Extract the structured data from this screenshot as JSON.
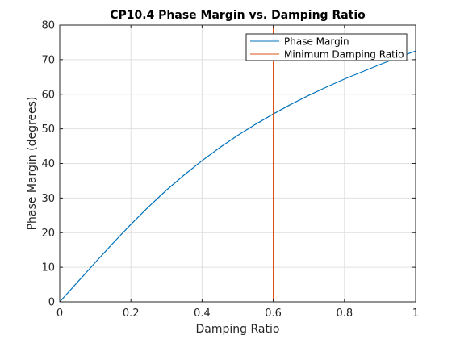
{
  "chart_data": {
    "type": "line",
    "title": "CP10.4 Phase Margin vs. Damping Ratio",
    "xlabel": "Damping Ratio",
    "ylabel": "Phase Margin (degrees)",
    "xlim": [
      0,
      1
    ],
    "ylim": [
      0,
      80
    ],
    "xticks": [
      0,
      0.2,
      0.4,
      0.6,
      0.8,
      1
    ],
    "xtick_labels": [
      "0",
      "0.2",
      "0.4",
      "0.6",
      "0.8",
      "1"
    ],
    "yticks": [
      0,
      10,
      20,
      30,
      40,
      50,
      60,
      70,
      80
    ],
    "ytick_labels": [
      "0",
      "10",
      "20",
      "30",
      "40",
      "50",
      "60",
      "70",
      "80"
    ],
    "grid": true,
    "legend_position": "top-right",
    "series": [
      {
        "name": "Phase Margin",
        "color": "#0072BD",
        "x": [
          0,
          0.05,
          0.1,
          0.15,
          0.2,
          0.25,
          0.3,
          0.35,
          0.4,
          0.45,
          0.5,
          0.55,
          0.6,
          0.65,
          0.7,
          0.75,
          0.8,
          0.85,
          0.9,
          0.95,
          1.0
        ],
        "y": [
          0,
          5.7,
          11.4,
          17.0,
          22.4,
          27.5,
          32.3,
          36.7,
          40.8,
          44.6,
          48.1,
          51.3,
          54.3,
          57.1,
          59.7,
          62.1,
          64.4,
          66.5,
          68.6,
          70.6,
          72.5
        ]
      },
      {
        "name": "Minimum Damping Ratio",
        "color": "#D95319",
        "x": [
          0.6,
          0.6
        ],
        "y": [
          0,
          80
        ]
      }
    ]
  }
}
